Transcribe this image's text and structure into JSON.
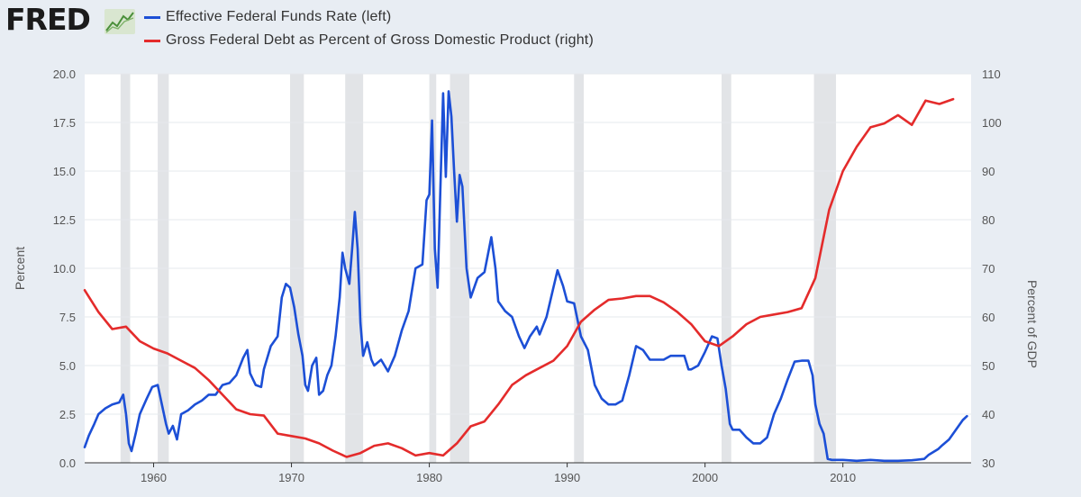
{
  "brand": {
    "logo_text": "FRED",
    "logo_icon": "line-chart-icon"
  },
  "colors": {
    "series_left": "#1c4fd6",
    "series_right": "#e42b2b",
    "recession": "#e2e4e7",
    "plot_bg": "#ffffff",
    "page_bg": "#e8edf3"
  },
  "chart_data": {
    "type": "line",
    "title": "",
    "ylabel": "Percent",
    "y2label": "Percent of GDP",
    "xlim": [
      1955,
      2019.3
    ],
    "ylim": [
      0,
      20
    ],
    "y2lim": [
      30,
      110
    ],
    "x_ticks": [
      "1960",
      "1970",
      "1980",
      "1990",
      "2000",
      "2010"
    ],
    "y_ticks": [
      "0.0",
      "2.5",
      "5.0",
      "7.5",
      "10.0",
      "12.5",
      "15.0",
      "17.5",
      "20.0"
    ],
    "y2_ticks": [
      "30",
      "40",
      "50",
      "60",
      "70",
      "80",
      "90",
      "100",
      "110"
    ],
    "recessions": [
      [
        1957.6,
        1958.3
      ],
      [
        1960.3,
        1961.1
      ],
      [
        1969.9,
        1970.9
      ],
      [
        1973.9,
        1975.2
      ],
      [
        1980.0,
        1980.5
      ],
      [
        1981.5,
        1982.9
      ],
      [
        1990.5,
        1991.2
      ],
      [
        2001.2,
        2001.9
      ],
      [
        2007.9,
        2009.5
      ]
    ],
    "series": [
      {
        "name": "Effective Federal Funds Rate (left)",
        "axis": "left",
        "color": "#1c4fd6",
        "points": [
          [
            1955.0,
            0.8
          ],
          [
            1955.3,
            1.4
          ],
          [
            1955.7,
            2.0
          ],
          [
            1956.0,
            2.5
          ],
          [
            1956.5,
            2.8
          ],
          [
            1957.0,
            3.0
          ],
          [
            1957.5,
            3.1
          ],
          [
            1957.8,
            3.5
          ],
          [
            1958.0,
            2.5
          ],
          [
            1958.2,
            1.0
          ],
          [
            1958.4,
            0.6
          ],
          [
            1958.7,
            1.5
          ],
          [
            1959.0,
            2.5
          ],
          [
            1959.5,
            3.3
          ],
          [
            1959.9,
            3.9
          ],
          [
            1960.3,
            4.0
          ],
          [
            1960.6,
            3.0
          ],
          [
            1960.9,
            2.0
          ],
          [
            1961.1,
            1.5
          ],
          [
            1961.4,
            1.9
          ],
          [
            1961.7,
            1.2
          ],
          [
            1962.0,
            2.5
          ],
          [
            1962.5,
            2.7
          ],
          [
            1963.0,
            3.0
          ],
          [
            1963.5,
            3.2
          ],
          [
            1964.0,
            3.5
          ],
          [
            1964.5,
            3.5
          ],
          [
            1965.0,
            4.0
          ],
          [
            1965.5,
            4.1
          ],
          [
            1966.0,
            4.5
          ],
          [
            1966.5,
            5.4
          ],
          [
            1966.8,
            5.8
          ],
          [
            1967.0,
            4.6
          ],
          [
            1967.4,
            4.0
          ],
          [
            1967.8,
            3.9
          ],
          [
            1968.0,
            4.8
          ],
          [
            1968.5,
            6.0
          ],
          [
            1969.0,
            6.5
          ],
          [
            1969.3,
            8.5
          ],
          [
            1969.6,
            9.2
          ],
          [
            1969.9,
            9.0
          ],
          [
            1970.2,
            8.0
          ],
          [
            1970.5,
            6.6
          ],
          [
            1970.8,
            5.5
          ],
          [
            1971.0,
            4.0
          ],
          [
            1971.2,
            3.7
          ],
          [
            1971.5,
            5.0
          ],
          [
            1971.8,
            5.4
          ],
          [
            1972.0,
            3.5
          ],
          [
            1972.3,
            3.7
          ],
          [
            1972.6,
            4.5
          ],
          [
            1972.9,
            5.0
          ],
          [
            1973.2,
            6.5
          ],
          [
            1973.5,
            8.5
          ],
          [
            1973.7,
            10.8
          ],
          [
            1973.9,
            10.0
          ],
          [
            1974.2,
            9.2
          ],
          [
            1974.4,
            11.0
          ],
          [
            1974.6,
            12.9
          ],
          [
            1974.8,
            11.0
          ],
          [
            1975.0,
            7.2
          ],
          [
            1975.2,
            5.5
          ],
          [
            1975.5,
            6.2
          ],
          [
            1975.8,
            5.3
          ],
          [
            1976.0,
            5.0
          ],
          [
            1976.5,
            5.3
          ],
          [
            1977.0,
            4.7
          ],
          [
            1977.5,
            5.5
          ],
          [
            1978.0,
            6.8
          ],
          [
            1978.5,
            7.8
          ],
          [
            1979.0,
            10.0
          ],
          [
            1979.5,
            10.2
          ],
          [
            1979.8,
            13.5
          ],
          [
            1980.0,
            13.8
          ],
          [
            1980.2,
            17.6
          ],
          [
            1980.4,
            11.0
          ],
          [
            1980.6,
            9.0
          ],
          [
            1980.8,
            14.0
          ],
          [
            1981.0,
            19.0
          ],
          [
            1981.2,
            14.7
          ],
          [
            1981.4,
            19.1
          ],
          [
            1981.6,
            17.8
          ],
          [
            1981.8,
            15.0
          ],
          [
            1982.0,
            12.4
          ],
          [
            1982.2,
            14.8
          ],
          [
            1982.4,
            14.2
          ],
          [
            1982.7,
            10.0
          ],
          [
            1983.0,
            8.5
          ],
          [
            1983.5,
            9.5
          ],
          [
            1984.0,
            9.8
          ],
          [
            1984.5,
            11.6
          ],
          [
            1984.8,
            10.0
          ],
          [
            1985.0,
            8.3
          ],
          [
            1985.5,
            7.8
          ],
          [
            1986.0,
            7.5
          ],
          [
            1986.5,
            6.5
          ],
          [
            1986.9,
            5.9
          ],
          [
            1987.3,
            6.5
          ],
          [
            1987.8,
            7.0
          ],
          [
            1988.0,
            6.6
          ],
          [
            1988.5,
            7.5
          ],
          [
            1989.0,
            9.0
          ],
          [
            1989.3,
            9.9
          ],
          [
            1989.7,
            9.1
          ],
          [
            1990.0,
            8.3
          ],
          [
            1990.5,
            8.2
          ],
          [
            1991.0,
            6.5
          ],
          [
            1991.5,
            5.8
          ],
          [
            1992.0,
            4.0
          ],
          [
            1992.5,
            3.3
          ],
          [
            1993.0,
            3.0
          ],
          [
            1993.5,
            3.0
          ],
          [
            1994.0,
            3.2
          ],
          [
            1994.5,
            4.5
          ],
          [
            1995.0,
            6.0
          ],
          [
            1995.5,
            5.8
          ],
          [
            1996.0,
            5.3
          ],
          [
            1996.5,
            5.3
          ],
          [
            1997.0,
            5.3
          ],
          [
            1997.5,
            5.5
          ],
          [
            1998.0,
            5.5
          ],
          [
            1998.5,
            5.5
          ],
          [
            1998.8,
            4.8
          ],
          [
            1999.0,
            4.8
          ],
          [
            1999.5,
            5.0
          ],
          [
            2000.0,
            5.7
          ],
          [
            2000.5,
            6.5
          ],
          [
            2000.9,
            6.4
          ],
          [
            2001.2,
            5.0
          ],
          [
            2001.5,
            3.8
          ],
          [
            2001.8,
            2.0
          ],
          [
            2002.0,
            1.7
          ],
          [
            2002.5,
            1.7
          ],
          [
            2003.0,
            1.3
          ],
          [
            2003.5,
            1.0
          ],
          [
            2004.0,
            1.0
          ],
          [
            2004.5,
            1.3
          ],
          [
            2005.0,
            2.5
          ],
          [
            2005.5,
            3.3
          ],
          [
            2006.0,
            4.3
          ],
          [
            2006.5,
            5.2
          ],
          [
            2007.0,
            5.25
          ],
          [
            2007.5,
            5.25
          ],
          [
            2007.8,
            4.5
          ],
          [
            2008.0,
            3.0
          ],
          [
            2008.3,
            2.0
          ],
          [
            2008.6,
            1.5
          ],
          [
            2008.9,
            0.2
          ],
          [
            2009.2,
            0.15
          ],
          [
            2010.0,
            0.15
          ],
          [
            2011.0,
            0.1
          ],
          [
            2012.0,
            0.15
          ],
          [
            2013.0,
            0.1
          ],
          [
            2014.0,
            0.1
          ],
          [
            2015.0,
            0.13
          ],
          [
            2015.9,
            0.2
          ],
          [
            2016.2,
            0.4
          ],
          [
            2016.9,
            0.7
          ],
          [
            2017.2,
            0.9
          ],
          [
            2017.7,
            1.2
          ],
          [
            2018.2,
            1.7
          ],
          [
            2018.7,
            2.2
          ],
          [
            2019.0,
            2.4
          ]
        ]
      },
      {
        "name": "Gross Federal Debt as Percent of Gross Domestic Product (right)",
        "axis": "right",
        "color": "#e42b2b",
        "points": [
          [
            1955.0,
            65.5
          ],
          [
            1956.0,
            61.0
          ],
          [
            1957.0,
            57.5
          ],
          [
            1958.0,
            58.0
          ],
          [
            1959.0,
            55.0
          ],
          [
            1960.0,
            53.5
          ],
          [
            1961.0,
            52.5
          ],
          [
            1962.0,
            51.0
          ],
          [
            1963.0,
            49.5
          ],
          [
            1964.0,
            47.0
          ],
          [
            1965.0,
            44.0
          ],
          [
            1966.0,
            41.0
          ],
          [
            1967.0,
            40.0
          ],
          [
            1968.0,
            39.7
          ],
          [
            1969.0,
            36.0
          ],
          [
            1970.0,
            35.5
          ],
          [
            1971.0,
            35.0
          ],
          [
            1972.0,
            34.0
          ],
          [
            1973.0,
            32.5
          ],
          [
            1974.0,
            31.2
          ],
          [
            1975.0,
            32.0
          ],
          [
            1976.0,
            33.5
          ],
          [
            1977.0,
            34.0
          ],
          [
            1978.0,
            33.0
          ],
          [
            1979.0,
            31.5
          ],
          [
            1980.0,
            32.0
          ],
          [
            1981.0,
            31.5
          ],
          [
            1982.0,
            34.0
          ],
          [
            1983.0,
            37.5
          ],
          [
            1984.0,
            38.5
          ],
          [
            1985.0,
            42.0
          ],
          [
            1986.0,
            46.0
          ],
          [
            1987.0,
            48.0
          ],
          [
            1988.0,
            49.5
          ],
          [
            1989.0,
            51.0
          ],
          [
            1990.0,
            54.0
          ],
          [
            1991.0,
            59.0
          ],
          [
            1992.0,
            61.5
          ],
          [
            1993.0,
            63.5
          ],
          [
            1994.0,
            63.8
          ],
          [
            1995.0,
            64.3
          ],
          [
            1996.0,
            64.3
          ],
          [
            1997.0,
            63.0
          ],
          [
            1998.0,
            61.0
          ],
          [
            1999.0,
            58.5
          ],
          [
            2000.0,
            55.0
          ],
          [
            2001.0,
            54.0
          ],
          [
            2002.0,
            56.0
          ],
          [
            2003.0,
            58.5
          ],
          [
            2004.0,
            60.0
          ],
          [
            2005.0,
            60.5
          ],
          [
            2006.0,
            61.0
          ],
          [
            2007.0,
            61.8
          ],
          [
            2008.0,
            68.0
          ],
          [
            2009.0,
            82.0
          ],
          [
            2010.0,
            90.0
          ],
          [
            2011.0,
            95.0
          ],
          [
            2012.0,
            99.0
          ],
          [
            2013.0,
            99.8
          ],
          [
            2014.0,
            101.5
          ],
          [
            2015.0,
            99.5
          ],
          [
            2016.0,
            104.5
          ],
          [
            2017.0,
            103.8
          ],
          [
            2018.0,
            104.8
          ]
        ]
      }
    ]
  }
}
